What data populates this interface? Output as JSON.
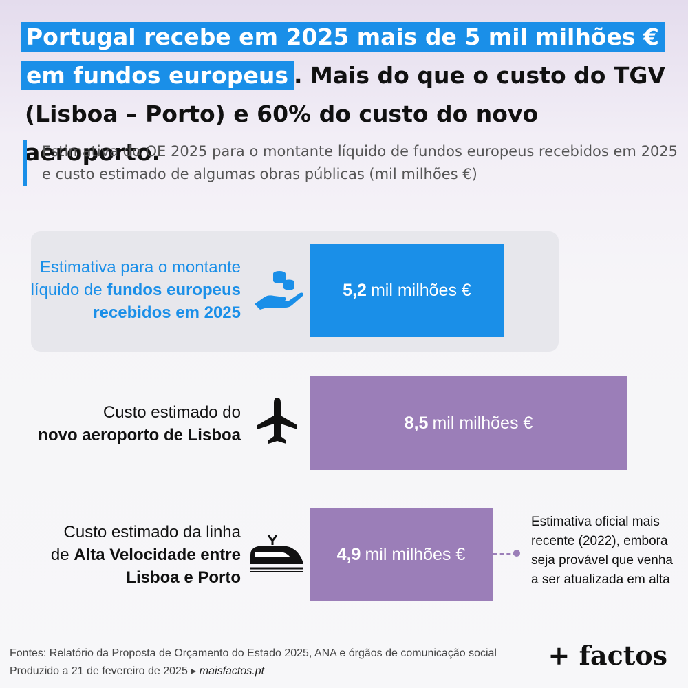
{
  "title": {
    "line1": "Portugal recebe em 2025 mais de 5 mil milhões €",
    "line2_highlight": "em fundos europeus",
    "line2_rest": ". Mais do que o custo do TGV",
    "line3": "(Lisboa – Porto) e 60% do custo do novo aeroporto."
  },
  "subtitle": "Estimativa do OE 2025 para o montante líquido de fundos europeus recebidos em 2025 e custo estimado de algumas obras públicas (mil milhões €)",
  "rows": [
    {
      "label_plain": "Estimativa para o montante líquido de ",
      "label_bold": "fundos europeus recebidos em 2025",
      "value_text": "5,2",
      "unit": "mil milhões €",
      "icon": "coins-hand-icon"
    },
    {
      "label_plain": "Custo estimado do",
      "label_bold": "novo aeroporto de Lisboa",
      "value_text": "8,5",
      "unit": "mil milhões €",
      "icon": "airplane-icon"
    },
    {
      "label_plain1": "Custo estimado da linha",
      "label_plain2": "de ",
      "label_bold1": "Alta Velocidade entre",
      "label_bold2": "Lisboa e Porto",
      "value_text": "4,9",
      "unit": "mil milhões €",
      "icon": "high-speed-train-icon"
    }
  ],
  "note": "Estimativa oficial mais recente (2022), embora seja provável que venha a ser atualizada em alta",
  "footer": {
    "sources": "Fontes: Relatório da Proposta de Orçamento do Estado 2025, ANA e órgãos de comunicação social",
    "produced": "Produzido a 21 de fevereiro de 2025 ▸ ",
    "site": "maisfactos.pt"
  },
  "brand": "+ factos",
  "colors": {
    "accent": "#1a8fe8",
    "bar_highlight": "#1a8fe8",
    "bar_other": "#9b7eb8"
  },
  "chart_data": {
    "type": "bar",
    "orientation": "horizontal",
    "categories": [
      "Estimativa para o montante líquido de fundos europeus recebidos em 2025",
      "Custo estimado do novo aeroporto de Lisboa",
      "Custo estimado da linha de Alta Velocidade entre Lisboa e Porto"
    ],
    "values": [
      5.2,
      8.5,
      4.9
    ],
    "title": "Portugal recebe em 2025 mais de 5 mil milhões € em fundos europeus. Mais do que o custo do TGV (Lisboa – Porto) e 60% do custo do novo aeroporto.",
    "subtitle": "Estimativa do OE 2025 para o montante líquido de fundos europeus recebidos em 2025 e custo estimado de algumas obras públicas (mil milhões €)",
    "xlabel": "",
    "ylabel": "",
    "grid": false
  }
}
